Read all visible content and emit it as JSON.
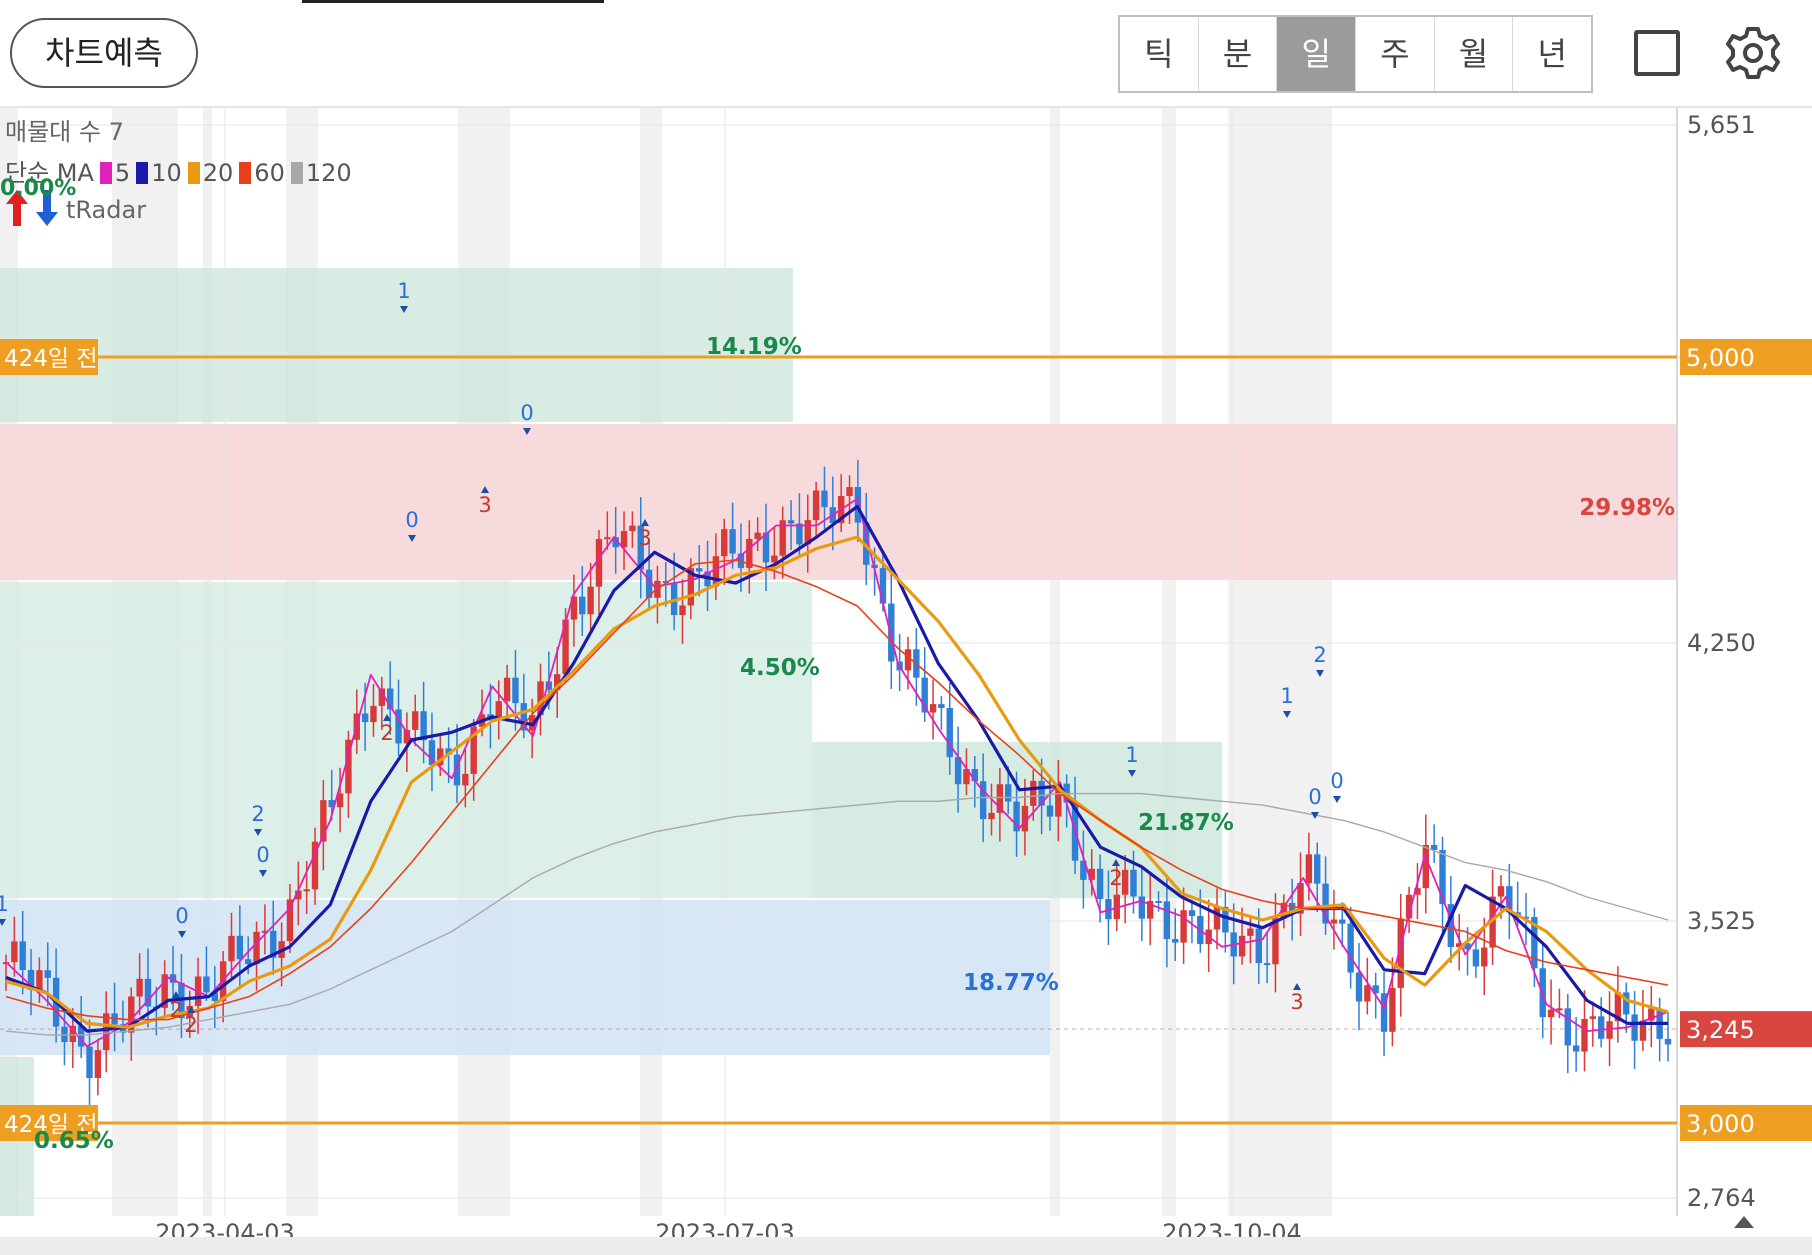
{
  "header": {
    "predict_button": "차트예측",
    "periods": [
      {
        "label": "틱",
        "active": false
      },
      {
        "label": "분",
        "active": false
      },
      {
        "label": "일",
        "active": true
      },
      {
        "label": "주",
        "active": false
      },
      {
        "label": "월",
        "active": false
      },
      {
        "label": "년",
        "active": false
      }
    ],
    "fullscreen_icon": "fullscreen-icon",
    "settings_icon": "gear-icon"
  },
  "indicators": {
    "volume_profile_label": "매물대 수 7",
    "ma_prefix": "단순 MA",
    "ma_lines": [
      {
        "period": "5",
        "color": "#e020b8"
      },
      {
        "period": "10",
        "color": "#1a1aa8"
      },
      {
        "period": "20",
        "color": "#e99a10"
      },
      {
        "period": "60",
        "color": "#e8401a"
      },
      {
        "period": "120",
        "color": "#a8a8a8"
      }
    ],
    "radar_label": "tRadar",
    "radar_pct": "0.00%"
  },
  "chart_data": {
    "type": "candlestick",
    "title": "",
    "x_ticks": [
      "2023-04-03",
      "2023-07-03",
      "2023-10-04"
    ],
    "y_ticks": [
      "5,651",
      "4,250",
      "3,525",
      "2,764"
    ],
    "ylim": [
      2764,
      5651
    ],
    "current_price": {
      "label": "3,245",
      "value": 3245,
      "color": "#d9453f"
    },
    "horizontal_lines": [
      {
        "value": 5000,
        "label": "5,000",
        "left_label": "424일 전",
        "color": "#ee9f22"
      },
      {
        "value": 3000,
        "label": "3,000",
        "left_label": "424일 전",
        "color": "#ee9f22"
      }
    ],
    "zone_percent_labels": [
      {
        "text": "14.19%",
        "color": "#1a8a4a"
      },
      {
        "text": "29.98%",
        "color": "#d9453f"
      },
      {
        "text": "4.50%",
        "color": "#1a8a4a"
      },
      {
        "text": "21.87%",
        "color": "#1a8a4a"
      },
      {
        "text": "18.77%",
        "color": "#2a6fd6"
      },
      {
        "text": "0.65%",
        "color": "#1a8a4a"
      }
    ],
    "signal_markers": [
      {
        "text": "1",
        "dir": "down"
      },
      {
        "text": "0",
        "dir": "down"
      },
      {
        "text": "3",
        "dir": "up"
      },
      {
        "text": "2",
        "dir": "up"
      },
      {
        "text": "0",
        "dir": "down"
      },
      {
        "text": "2",
        "dir": "down"
      },
      {
        "text": "0",
        "dir": "down"
      },
      {
        "text": "3",
        "dir": "up"
      },
      {
        "text": "1",
        "dir": "down"
      },
      {
        "text": "0",
        "dir": "down"
      },
      {
        "text": "2",
        "dir": "up"
      },
      {
        "text": "2",
        "dir": "up"
      },
      {
        "text": "1",
        "dir": "down"
      },
      {
        "text": "0",
        "dir": "down"
      },
      {
        "text": "2",
        "dir": "up"
      },
      {
        "text": "1",
        "dir": "down"
      },
      {
        "text": "2",
        "dir": "down"
      },
      {
        "text": "0",
        "dir": "down"
      },
      {
        "text": "3",
        "dir": "up"
      }
    ],
    "ma_series": [
      {
        "name": "5",
        "values": [
          3420,
          3320,
          3200,
          3260,
          3380,
          3330,
          3450,
          3560,
          3790,
          4170,
          4000,
          3900,
          4140,
          4010,
          4380,
          4530,
          4400,
          4420,
          4470,
          4560,
          4560,
          4630,
          4200,
          4030,
          3880,
          3770,
          3890,
          3550,
          3580,
          3540,
          3460,
          3480,
          3640,
          3460,
          3300,
          3700,
          3440,
          3590,
          3310,
          3240,
          3250,
          3290
        ]
      },
      {
        "name": "10",
        "values": [
          3380,
          3340,
          3240,
          3250,
          3320,
          3330,
          3410,
          3460,
          3570,
          3840,
          4000,
          4020,
          4060,
          4040,
          4200,
          4390,
          4490,
          4430,
          4410,
          4460,
          4530,
          4610,
          4420,
          4200,
          4050,
          3870,
          3880,
          3720,
          3670,
          3590,
          3540,
          3510,
          3560,
          3560,
          3400,
          3390,
          3620,
          3560,
          3460,
          3320,
          3260,
          3260
        ]
      },
      {
        "name": "20",
        "values": [
          3370,
          3340,
          3260,
          3250,
          3280,
          3300,
          3370,
          3410,
          3480,
          3660,
          3890,
          3970,
          4050,
          4080,
          4180,
          4290,
          4350,
          4380,
          4430,
          4450,
          4500,
          4530,
          4420,
          4310,
          4170,
          4000,
          3870,
          3790,
          3720,
          3600,
          3560,
          3530,
          3560,
          3570,
          3430,
          3360,
          3470,
          3560,
          3500,
          3400,
          3320,
          3290
        ]
      },
      {
        "name": "60",
        "values": [
          3330,
          3300,
          3280,
          3270,
          3270,
          3300,
          3330,
          3390,
          3460,
          3560,
          3680,
          3810,
          3940,
          4070,
          4170,
          4280,
          4390,
          4460,
          4470,
          4440,
          4400,
          4350,
          4240,
          4150,
          4050,
          3960,
          3860,
          3790,
          3720,
          3660,
          3610,
          3580,
          3560,
          3560,
          3540,
          3520,
          3500,
          3450,
          3420,
          3400,
          3380,
          3360
        ]
      },
      {
        "name": "120",
        "values": [
          3240,
          3230,
          3230,
          3240,
          3250,
          3270,
          3290,
          3310,
          3350,
          3400,
          3450,
          3500,
          3570,
          3640,
          3690,
          3730,
          3760,
          3780,
          3800,
          3810,
          3820,
          3830,
          3840,
          3840,
          3850,
          3850,
          3860,
          3860,
          3860,
          3850,
          3840,
          3830,
          3810,
          3790,
          3760,
          3720,
          3680,
          3660,
          3630,
          3590,
          3560,
          3530
        ]
      }
    ]
  }
}
